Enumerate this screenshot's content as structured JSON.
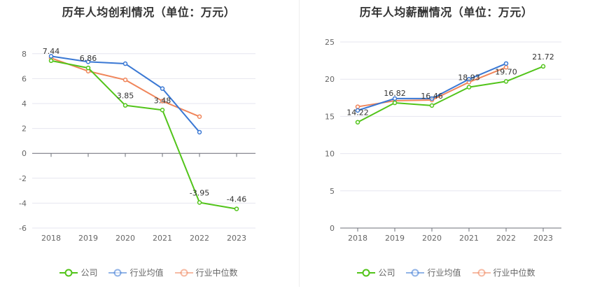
{
  "chart_data": [
    {
      "type": "line",
      "title": "历年人均创利情况（单位：万元）",
      "categories": [
        "2018",
        "2019",
        "2020",
        "2021",
        "2022",
        "2023"
      ],
      "ylim": [
        -6,
        9
      ],
      "yticks": [
        -6,
        -4,
        -2,
        0,
        2,
        4,
        6,
        8
      ],
      "grid": true,
      "legend_position": "bottom",
      "series": [
        {
          "name": "公司",
          "color": "#52c41a",
          "values": [
            7.44,
            6.86,
            3.85,
            3.48,
            -3.95,
            -4.46
          ],
          "labels": [
            "7.44",
            "6.86",
            "3.85",
            "3.48",
            "-3.95",
            "-4.46"
          ]
        },
        {
          "name": "行业均值",
          "color": "#3a78d4",
          "values": [
            7.8,
            7.35,
            7.2,
            5.2,
            1.7,
            null
          ]
        },
        {
          "name": "行业中位数",
          "color": "#f0855a",
          "values": [
            7.65,
            6.6,
            5.9,
            4.2,
            2.95,
            null
          ]
        }
      ]
    },
    {
      "type": "line",
      "title": "历年人均薪酬情况（单位：万元）",
      "categories": [
        "2018",
        "2019",
        "2020",
        "2021",
        "2022",
        "2023"
      ],
      "ylim": [
        0,
        25
      ],
      "yticks": [
        0,
        5,
        10,
        15,
        20,
        25
      ],
      "grid": true,
      "legend_position": "bottom",
      "series": [
        {
          "name": "公司",
          "color": "#52c41a",
          "values": [
            14.22,
            16.82,
            16.46,
            18.93,
            19.7,
            21.72
          ],
          "labels": [
            "14.22",
            "16.82",
            "16.46",
            "18.93",
            "19.70",
            "21.72"
          ]
        },
        {
          "name": "行业均值",
          "color": "#3a78d4",
          "values": [
            15.8,
            17.4,
            17.4,
            20.0,
            22.1,
            null
          ]
        },
        {
          "name": "行业中位数",
          "color": "#f0855a",
          "values": [
            16.3,
            17.1,
            17.2,
            19.6,
            21.6,
            null
          ]
        }
      ]
    }
  ]
}
